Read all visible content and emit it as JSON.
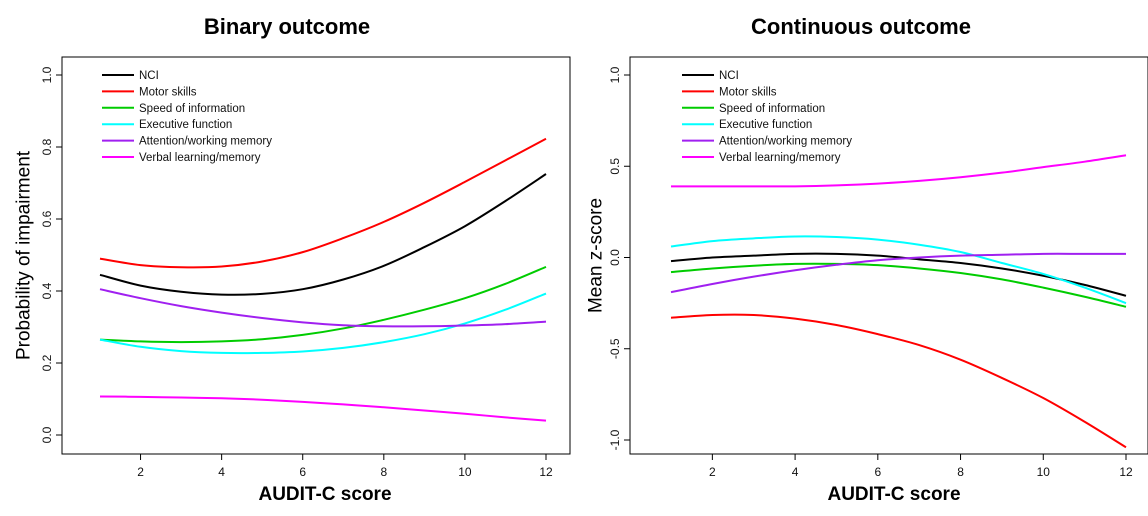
{
  "chart_data": [
    {
      "type": "line",
      "title": "Binary outcome",
      "xlabel": "AUDIT-C score",
      "ylabel": "Probability of impairment",
      "xlim": [
        1,
        12
      ],
      "ylim": [
        0.0,
        1.0
      ],
      "xticks": [
        2,
        4,
        6,
        8,
        10,
        12
      ],
      "xtick_labels": [
        "2",
        "4",
        "6",
        "8",
        "10",
        "12"
      ],
      "yticks": [
        0.0,
        0.2,
        0.4,
        0.6,
        0.8,
        1.0
      ],
      "ytick_labels": [
        "0.0",
        "0.2",
        "0.4",
        "0.6",
        "0.8",
        "1.0"
      ],
      "legend_position": "top-left",
      "x": [
        1,
        2,
        3,
        4,
        5,
        6,
        7,
        8,
        9,
        10,
        11,
        12
      ],
      "series": [
        {
          "name": "NCI",
          "color": "#000000",
          "values": [
            0.445,
            0.415,
            0.398,
            0.39,
            0.392,
            0.405,
            0.432,
            0.47,
            0.522,
            0.58,
            0.65,
            0.725
          ]
        },
        {
          "name": "Motor skills",
          "color": "#ff0000",
          "values": [
            0.49,
            0.472,
            0.466,
            0.468,
            0.482,
            0.508,
            0.547,
            0.592,
            0.645,
            0.703,
            0.763,
            0.823
          ]
        },
        {
          "name": "Speed of information",
          "color": "#00cc00",
          "values": [
            0.265,
            0.26,
            0.258,
            0.26,
            0.266,
            0.278,
            0.296,
            0.32,
            0.348,
            0.38,
            0.42,
            0.467
          ]
        },
        {
          "name": "Executive function",
          "color": "#00ffff",
          "values": [
            0.265,
            0.245,
            0.233,
            0.228,
            0.228,
            0.232,
            0.242,
            0.258,
            0.28,
            0.31,
            0.348,
            0.393
          ]
        },
        {
          "name": "Attention/working memory",
          "color": "#a020f0",
          "values": [
            0.405,
            0.38,
            0.358,
            0.34,
            0.325,
            0.313,
            0.305,
            0.302,
            0.302,
            0.304,
            0.308,
            0.315
          ]
        },
        {
          "name": "Verbal learning/memory",
          "color": "#ff00ff",
          "values": [
            0.107,
            0.106,
            0.104,
            0.102,
            0.098,
            0.092,
            0.085,
            0.077,
            0.068,
            0.059,
            0.049,
            0.04
          ]
        }
      ]
    },
    {
      "type": "line",
      "title": "Continuous outcome",
      "xlabel": "AUDIT-C score",
      "ylabel": "Mean z-score",
      "xlim": [
        1,
        12
      ],
      "ylim": [
        -1.0,
        1.0
      ],
      "xticks": [
        2,
        4,
        6,
        8,
        10,
        12
      ],
      "xtick_labels": [
        "2",
        "4",
        "6",
        "8",
        "10",
        "12"
      ],
      "yticks": [
        -1.0,
        -0.5,
        0.0,
        0.5,
        1.0
      ],
      "ytick_labels": [
        "-1.0",
        "-0.5",
        "0.0",
        "0.5",
        "1.0"
      ],
      "legend_position": "top-left",
      "x": [
        1,
        2,
        3,
        4,
        5,
        6,
        7,
        8,
        9,
        10,
        11,
        12
      ],
      "series": [
        {
          "name": "NCI",
          "color": "#000000",
          "values": [
            -0.02,
            0.0,
            0.01,
            0.02,
            0.02,
            0.01,
            -0.01,
            -0.03,
            -0.06,
            -0.1,
            -0.15,
            -0.21
          ]
        },
        {
          "name": "Motor skills",
          "color": "#ff0000",
          "values": [
            -0.33,
            -0.315,
            -0.315,
            -0.335,
            -0.37,
            -0.42,
            -0.48,
            -0.56,
            -0.66,
            -0.77,
            -0.9,
            -1.04
          ]
        },
        {
          "name": "Speed of information",
          "color": "#00cc00",
          "values": [
            -0.08,
            -0.06,
            -0.045,
            -0.035,
            -0.035,
            -0.042,
            -0.06,
            -0.085,
            -0.12,
            -0.165,
            -0.215,
            -0.27
          ]
        },
        {
          "name": "Executive function",
          "color": "#00ffff",
          "values": [
            0.06,
            0.09,
            0.105,
            0.115,
            0.112,
            0.098,
            0.07,
            0.03,
            -0.03,
            -0.09,
            -0.165,
            -0.25
          ]
        },
        {
          "name": "Attention/working memory",
          "color": "#a020f0",
          "values": [
            -0.19,
            -0.145,
            -0.105,
            -0.07,
            -0.04,
            -0.015,
            0.0,
            0.01,
            0.015,
            0.02,
            0.02,
            0.02
          ]
        },
        {
          "name": "Verbal learning/memory",
          "color": "#ff00ff",
          "values": [
            0.39,
            0.39,
            0.39,
            0.39,
            0.395,
            0.405,
            0.42,
            0.44,
            0.465,
            0.495,
            0.525,
            0.56
          ]
        }
      ]
    }
  ]
}
